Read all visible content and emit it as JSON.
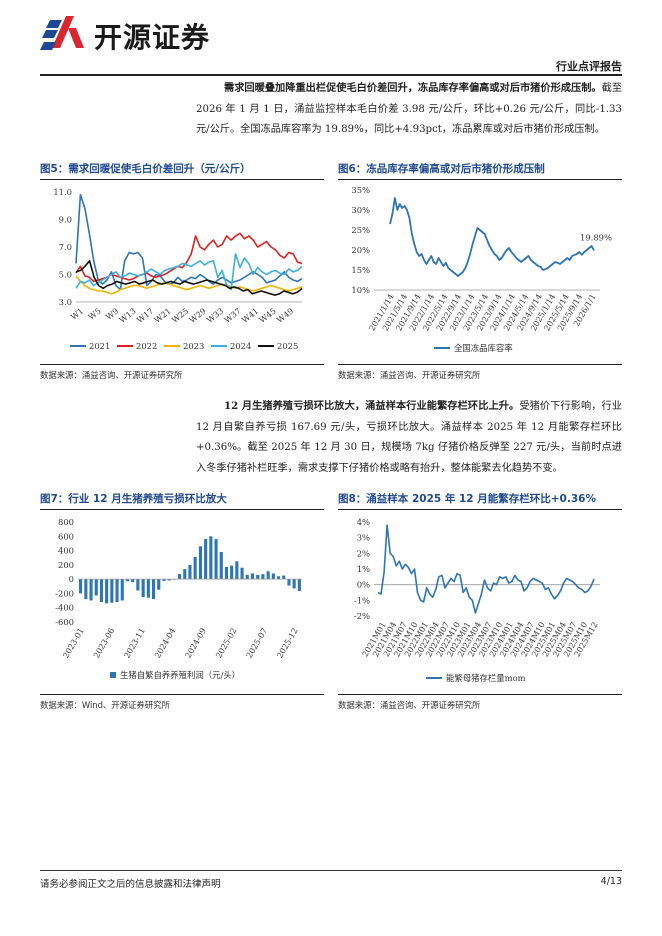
{
  "header": {
    "brand": "开源证券",
    "report_type": "行业点评报告"
  },
  "paragraphs": [
    {
      "bold": "需求回暖叠加降重出栏促使毛白价差回升，冻品库存率偏高或对后市猪价形成压制。",
      "text": "截至 2026 年 1 月 1 日，涌益监控样本毛白价差 3.98 元/公斤，环比+0.26 元/公斤，同比-1.33 元/公斤。全国冻品库容率为 19.89%，同比+4.93pct，冻品累库或对后市猪价形成压制。"
    },
    {
      "bold": "12 月生猪养殖亏损环比放大，涌益样本行业能繁存栏环比上升。",
      "text": "受猪价下行影响，行业 12 月自繁自养亏损 167.69 元/头，亏损环比放大。涌益样本 2025 年 12 月能繁存栏环比+0.36%。截至 2025 年 12 月 30 日，规模场 7kg 仔猪价格反弹至 227 元/头，当前时点进入冬季仔猪补栏旺季，需求支撑下仔猪价格或略有抬升，整体能繁去化趋势不变。"
    }
  ],
  "figures": [
    {
      "title": "图5：需求回暖促使毛白价差回升（元/公斤）",
      "source": "数据来源：涌益咨询、开源证券研究所"
    },
    {
      "title": "图6：冻品库存率偏高或对后市猪价形成压制",
      "source": "数据来源：涌益咨询、开源证券研究所"
    },
    {
      "title": "图7：行业 12 月生猪养殖亏损环比放大",
      "source": "数据来源：Wind、开源证券研究所"
    },
    {
      "title": "图8：涌益样本 2025 年 12 月能繁存栏环比+0.36%",
      "source": "数据来源：涌益咨询、开源证券研究所"
    }
  ],
  "footer": {
    "disclaimer": "请务必参阅正文之后的信息披露和法律声明",
    "page": "4/13"
  },
  "chart_data": [
    {
      "type": "line",
      "ylim": [
        3.0,
        11.0
      ],
      "yticks": [
        "11.0",
        "9.0",
        "7.0",
        "5.0",
        "3.0"
      ],
      "xtick_labels": [
        "W1",
        "W5",
        "W9",
        "W13",
        "W17",
        "W21",
        "W25",
        "W29",
        "W33",
        "W37",
        "W41",
        "W45",
        "W49"
      ],
      "legend_position": "bottom",
      "series": [
        {
          "name": "2021",
          "color": "#2e75b6",
          "values": [
            5.8,
            10.8,
            9.8,
            8.0,
            6.0,
            4.6,
            4.3,
            4.6,
            5.2,
            4.2,
            3.9,
            6.0,
            6.6,
            6.5,
            6.6,
            6.2,
            4.2,
            4.5,
            5.0,
            4.9,
            4.5,
            4.3,
            4.4,
            4.8,
            4.5,
            4.6,
            4.8,
            4.7,
            5.0,
            4.8,
            4.5,
            4.3,
            4.6,
            4.8,
            4.6,
            4.4,
            4.5,
            4.6,
            4.8,
            5.0,
            5.2,
            5.0,
            4.8,
            4.4,
            4.5,
            4.6,
            4.9,
            5.2,
            4.8,
            4.6,
            4.5,
            4.7
          ]
        },
        {
          "name": "2022",
          "color": "#e02020",
          "values": [
            5.1,
            5.6,
            4.9,
            4.8,
            4.5,
            4.6,
            4.7,
            4.8,
            5.0,
            4.9,
            4.8,
            4.7,
            4.6,
            4.7,
            4.9,
            5.0,
            5.1,
            4.9,
            4.8,
            4.9,
            5.0,
            5.2,
            5.4,
            5.6,
            5.5,
            5.9,
            6.5,
            7.8,
            7.0,
            6.8,
            7.2,
            7.5,
            7.0,
            7.2,
            7.8,
            7.5,
            7.8,
            8.0,
            7.6,
            7.8,
            7.5,
            7.0,
            7.2,
            7.4,
            7.0,
            6.8,
            6.4,
            6.2,
            6.6,
            6.5,
            5.9,
            5.8
          ]
        },
        {
          "name": "2023",
          "color": "#f0b400",
          "values": [
            4.9,
            4.5,
            4.2,
            4.0,
            3.9,
            3.8,
            3.8,
            3.7,
            3.6,
            3.7,
            3.9,
            4.0,
            4.1,
            4.2,
            4.2,
            4.1,
            4.0,
            4.1,
            4.2,
            4.3,
            4.4,
            4.3,
            4.2,
            4.1,
            4.0,
            3.9,
            4.0,
            4.1,
            4.2,
            4.1,
            4.0,
            4.1,
            4.2,
            4.3,
            4.2,
            4.1,
            4.0,
            4.1,
            4.0,
            3.9,
            3.8,
            3.9,
            4.0,
            4.1,
            4.2,
            4.1,
            4.0,
            3.9,
            3.8,
            3.9,
            4.0,
            4.1
          ]
        },
        {
          "name": "2024",
          "color": "#3ab0e0",
          "values": [
            4.0,
            4.5,
            4.4,
            4.6,
            4.2,
            4.4,
            4.6,
            4.8,
            5.0,
            5.2,
            4.8,
            4.9,
            5.1,
            5.0,
            4.9,
            5.0,
            5.2,
            5.4,
            5.2,
            5.0,
            5.3,
            5.4,
            5.5,
            5.6,
            5.8,
            5.7,
            5.6,
            5.8,
            6.0,
            5.7,
            5.9,
            6.0,
            4.8,
            5.3,
            4.2,
            3.9,
            6.5,
            5.5,
            6.2,
            5.8,
            5.0,
            5.5,
            5.2,
            5.0,
            5.2,
            5.3,
            5.1,
            5.0,
            5.4,
            5.2,
            5.3,
            5.6
          ]
        },
        {
          "name": "2025",
          "color": "#111111",
          "values": [
            5.2,
            5.3,
            5.6,
            6.0,
            4.8,
            4.2,
            4.0,
            4.2,
            4.3,
            4.5,
            4.4,
            4.3,
            4.4,
            4.5,
            4.3,
            4.4,
            4.5,
            4.6,
            4.4,
            4.3,
            4.4,
            4.5,
            4.4,
            4.3,
            4.5,
            4.4,
            4.3,
            4.4,
            4.5,
            4.6,
            4.5,
            4.4,
            4.3,
            4.2,
            4.0,
            4.1,
            4.0,
            3.8,
            3.9,
            3.6,
            3.7,
            3.8,
            3.7,
            3.6,
            3.5,
            3.6,
            3.8,
            3.7,
            3.6,
            3.72,
            3.98
          ]
        }
      ]
    },
    {
      "type": "line",
      "ylim": [
        10,
        35
      ],
      "yticks": [
        "35%",
        "30%",
        "25%",
        "20%",
        "15%",
        "10%"
      ],
      "annotation": "19.89%",
      "xtick_labels": [
        "2021/1/14",
        "2021/5/14",
        "2021/9/14",
        "2022/1/14",
        "2022/5/14",
        "2022/9/14",
        "2023/1/14",
        "2023/5/14",
        "2023/9/14",
        "2024/1/14",
        "2024/5/14",
        "2024/9/14",
        "2025/1/14",
        "2025/5/14",
        "2025/9/14",
        "2026/1/1"
      ],
      "legend_position": "bottom",
      "series": [
        {
          "name": "全国冻品库容率",
          "color": "#2e75b6",
          "values": [
            26.5,
            29.0,
            33.0,
            30.0,
            31.5,
            30.5,
            31.0,
            30.0,
            28.0,
            24.0,
            21.5,
            19.5,
            18.5,
            19.0,
            17.5,
            16.5,
            17.5,
            18.5,
            17.0,
            16.5,
            18.0,
            17.0,
            16.0,
            16.8,
            15.5,
            15.0,
            14.5,
            14.0,
            13.5,
            14.0,
            14.5,
            15.5,
            17.0,
            19.0,
            21.5,
            23.5,
            25.5,
            25.0,
            24.5,
            24.0,
            22.5,
            21.0,
            20.0,
            19.0,
            18.5,
            17.5,
            18.0,
            19.0,
            20.0,
            20.5,
            19.5,
            18.8,
            18.0,
            17.5,
            17.0,
            17.5,
            18.0,
            18.5,
            17.5,
            17.0,
            16.5,
            16.0,
            15.8,
            15.0,
            15.2,
            15.5,
            16.0,
            16.5,
            17.0,
            16.8,
            16.5,
            17.0,
            17.5,
            18.0,
            17.5,
            18.5,
            18.8,
            19.0,
            19.5,
            18.8,
            19.5,
            20.0,
            20.5,
            21.0,
            19.89
          ]
        }
      ]
    },
    {
      "type": "bar",
      "ylim": [
        -600,
        800
      ],
      "yticks": [
        "800",
        "600",
        "400",
        "200",
        "0",
        "-200",
        "-400",
        "-600"
      ],
      "xtick_labels": [
        "2023-01",
        "2023-06",
        "2023-11",
        "2024-04",
        "2024-09",
        "2025-02",
        "2025-07",
        "2025-12"
      ],
      "legend_position": "bottom",
      "series": [
        {
          "name": "生猪自繁自养养殖利润（元/头）",
          "color": "#2e75b6",
          "values": [
            -200,
            -280,
            -300,
            -230,
            -320,
            -340,
            -330,
            -320,
            -300,
            -30,
            -40,
            -160,
            -250,
            -260,
            -280,
            -150,
            -25,
            -20,
            -8,
            70,
            140,
            200,
            310,
            460,
            560,
            600,
            560,
            380,
            170,
            190,
            250,
            160,
            60,
            80,
            60,
            70,
            110,
            80,
            40,
            50,
            -90,
            -130,
            -168
          ]
        }
      ]
    },
    {
      "type": "line",
      "ylim": [
        -2,
        4
      ],
      "yticks": [
        "4%",
        "3%",
        "2%",
        "1%",
        "0%",
        "-1%",
        "-2%"
      ],
      "xtick_labels": [
        "2021M01",
        "2021M04",
        "2021M07",
        "2021M10",
        "2022M01",
        "2022M04",
        "2022M07",
        "2022M10",
        "2023M01",
        "2023M04",
        "2023M07",
        "2023M10",
        "2024M01",
        "2024M04",
        "2024M07",
        "2024M10",
        "2025M01",
        "2025M04",
        "2025M07",
        "2025M10",
        "2025M12"
      ],
      "legend_position": "bottom",
      "series": [
        {
          "name": "能繁母猪存栏量mom",
          "color": "#2e75b6",
          "values": [
            -0.5,
            -0.6,
            0.8,
            3.8,
            2.0,
            1.8,
            1.2,
            1.5,
            1.0,
            1.3,
            1.1,
            0.7,
            1.0,
            -0.5,
            -1.0,
            -1.1,
            -0.2,
            -0.6,
            -0.8,
            -0.3,
            0.5,
            0.6,
            -0.2,
            0.1,
            0.4,
            0.2,
            0.7,
            0.6,
            -0.5,
            -0.2,
            -0.8,
            -1.0,
            -1.8,
            -1.2,
            -0.6,
            0.3,
            -0.2,
            -0.4,
            0.1,
            0.0,
            0.5,
            0.4,
            0.5,
            0.1,
            0.2,
            0.6,
            0.3,
            0.2,
            -0.4,
            -0.2,
            0.2,
            0.4,
            0.3,
            0.2,
            0.1,
            -0.3,
            -0.2,
            -0.6,
            -0.9,
            -0.7,
            -0.4,
            0.1,
            0.4,
            0.3,
            0.2,
            0.0,
            -0.2,
            -0.3,
            -0.5,
            -0.4,
            -0.1,
            0.36
          ]
        }
      ]
    }
  ]
}
